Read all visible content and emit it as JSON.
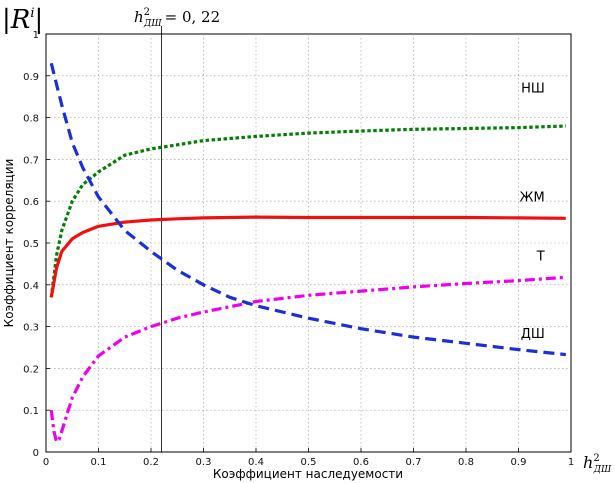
{
  "chart_data": {
    "type": "line",
    "corner_label": "|R",
    "corner_label_sup": "i",
    "xlabel": "Коэффициент наследуемости",
    "ylabel": "Коэффициент корреляции",
    "axis_var": "h",
    "axis_var_sup": "2",
    "axis_var_sub": "ДШ",
    "annotation_eq": "= 0, 22",
    "xlim": [
      0,
      1
    ],
    "ylim": [
      0,
      1
    ],
    "xticks": [
      0,
      0.1,
      0.2,
      0.3,
      0.4,
      0.5,
      0.6,
      0.7,
      0.8,
      0.9,
      1
    ],
    "yticks": [
      0,
      0.1,
      0.2,
      0.3,
      0.4,
      0.5,
      0.6,
      0.7,
      0.8,
      0.9,
      1
    ],
    "xtick_labels": [
      "0",
      "0.1",
      "0.2",
      "0.3",
      "0.4",
      "0.5",
      "0.6",
      "0.7",
      "0.8",
      "0.9",
      "1"
    ],
    "ytick_labels": [
      "0",
      "0.1",
      "0.2",
      "0.3",
      "0.4",
      "0.5",
      "0.6",
      "0.7",
      "0.8",
      "0.9",
      "1"
    ],
    "grid": true,
    "vline_x": 0.22,
    "series": [
      {
        "name": "НШ",
        "color": "#008000",
        "style": "dotted",
        "x": [
          0.01,
          0.02,
          0.03,
          0.05,
          0.07,
          0.1,
          0.15,
          0.2,
          0.25,
          0.3,
          0.4,
          0.5,
          0.6,
          0.7,
          0.8,
          0.9,
          0.99
        ],
        "y": [
          0.37,
          0.47,
          0.53,
          0.6,
          0.64,
          0.67,
          0.71,
          0.725,
          0.735,
          0.745,
          0.755,
          0.763,
          0.768,
          0.772,
          0.774,
          0.776,
          0.78
        ]
      },
      {
        "name": "ЖМ",
        "color": "#ee1111",
        "style": "solid",
        "x": [
          0.01,
          0.02,
          0.03,
          0.05,
          0.07,
          0.1,
          0.15,
          0.2,
          0.25,
          0.3,
          0.4,
          0.5,
          0.6,
          0.7,
          0.8,
          0.9,
          0.99
        ],
        "y": [
          0.37,
          0.44,
          0.48,
          0.51,
          0.525,
          0.54,
          0.55,
          0.555,
          0.558,
          0.56,
          0.562,
          0.561,
          0.561,
          0.561,
          0.561,
          0.56,
          0.559
        ]
      },
      {
        "name": "Т",
        "color": "#ee00ee",
        "style": "dashdot",
        "x": [
          0.01,
          0.015,
          0.02,
          0.025,
          0.03,
          0.04,
          0.05,
          0.07,
          0.1,
          0.15,
          0.2,
          0.25,
          0.3,
          0.4,
          0.5,
          0.6,
          0.7,
          0.8,
          0.9,
          0.99
        ],
        "y": [
          0.1,
          0.05,
          0.025,
          0.03,
          0.05,
          0.09,
          0.13,
          0.18,
          0.23,
          0.275,
          0.3,
          0.32,
          0.335,
          0.36,
          0.375,
          0.385,
          0.395,
          0.403,
          0.41,
          0.418
        ]
      },
      {
        "name": "ДШ",
        "color": "#1a2fd4",
        "style": "dashed",
        "x": [
          0.01,
          0.02,
          0.03,
          0.05,
          0.07,
          0.1,
          0.15,
          0.2,
          0.25,
          0.3,
          0.35,
          0.4,
          0.5,
          0.6,
          0.7,
          0.8,
          0.9,
          0.99
        ],
        "y": [
          0.93,
          0.88,
          0.83,
          0.74,
          0.68,
          0.61,
          0.53,
          0.48,
          0.435,
          0.4,
          0.37,
          0.35,
          0.32,
          0.295,
          0.275,
          0.26,
          0.245,
          0.233
        ]
      }
    ]
  }
}
